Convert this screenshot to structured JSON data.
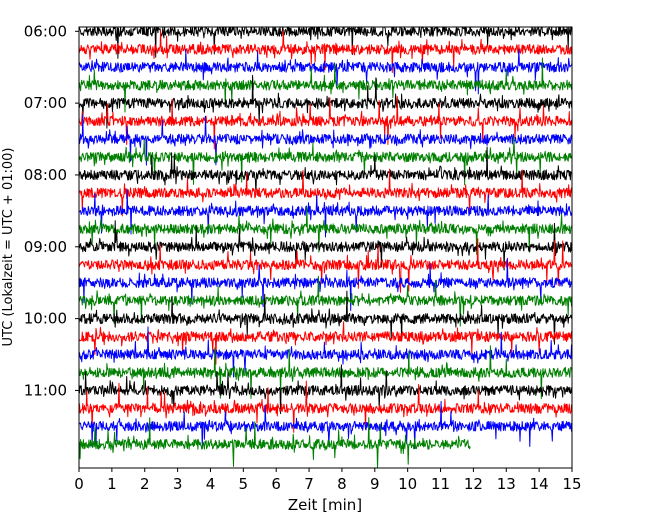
{
  "chart_data": {
    "type": "line",
    "title": "",
    "xlabel": "Zeit  [min]",
    "ylabel": "UTC (Lokalzeit = UTC + 01:00)",
    "xlim": [
      0,
      15
    ],
    "x_ticks": [
      "0",
      "1",
      "2",
      "3",
      "4",
      "5",
      "6",
      "7",
      "8",
      "9",
      "10",
      "11",
      "12",
      "13",
      "14",
      "15"
    ],
    "y_ticks": [
      "06:00",
      "07:00",
      "08:00",
      "09:00",
      "10:00",
      "11:00"
    ],
    "ylim_hours": [
      5.94,
      12.08
    ],
    "trace_interval_min": 15,
    "trace_length_min": 15,
    "color_cycle": [
      "#000000",
      "#ff0000",
      "#0000ff",
      "#008000"
    ],
    "grid": false,
    "legend": "none",
    "series": [
      {
        "start": "06:00",
        "color": "#000000",
        "end_min": 15
      },
      {
        "start": "06:15",
        "color": "#ff0000",
        "end_min": 15
      },
      {
        "start": "06:30",
        "color": "#0000ff",
        "end_min": 15
      },
      {
        "start": "06:45",
        "color": "#008000",
        "end_min": 15
      },
      {
        "start": "07:00",
        "color": "#000000",
        "end_min": 15
      },
      {
        "start": "07:15",
        "color": "#ff0000",
        "end_min": 15
      },
      {
        "start": "07:30",
        "color": "#0000ff",
        "end_min": 15
      },
      {
        "start": "07:45",
        "color": "#008000",
        "end_min": 15
      },
      {
        "start": "08:00",
        "color": "#000000",
        "end_min": 15
      },
      {
        "start": "08:15",
        "color": "#ff0000",
        "end_min": 15
      },
      {
        "start": "08:30",
        "color": "#0000ff",
        "end_min": 15
      },
      {
        "start": "08:45",
        "color": "#008000",
        "end_min": 15
      },
      {
        "start": "09:00",
        "color": "#000000",
        "end_min": 15
      },
      {
        "start": "09:15",
        "color": "#ff0000",
        "end_min": 15
      },
      {
        "start": "09:30",
        "color": "#0000ff",
        "end_min": 15
      },
      {
        "start": "09:45",
        "color": "#008000",
        "end_min": 15
      },
      {
        "start": "10:00",
        "color": "#000000",
        "end_min": 15
      },
      {
        "start": "10:15",
        "color": "#ff0000",
        "end_min": 15
      },
      {
        "start": "10:30",
        "color": "#0000ff",
        "end_min": 15
      },
      {
        "start": "10:45",
        "color": "#008000",
        "end_min": 15
      },
      {
        "start": "11:00",
        "color": "#000000",
        "end_min": 15
      },
      {
        "start": "11:15",
        "color": "#ff0000",
        "end_min": 15
      },
      {
        "start": "11:30",
        "color": "#0000ff",
        "end_min": 15
      },
      {
        "start": "11:45",
        "color": "#008000",
        "end_min": 11.9
      }
    ]
  }
}
